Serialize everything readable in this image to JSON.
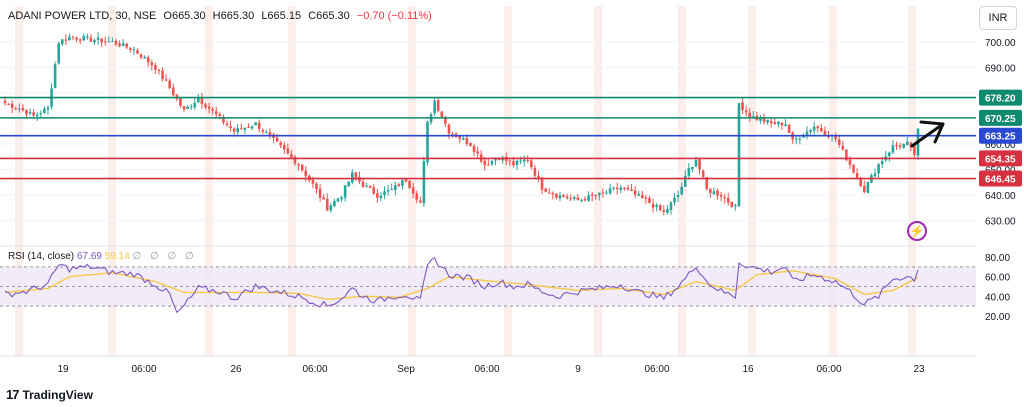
{
  "header": {
    "symbol": "ADANI POWER LTD, 30, NSE",
    "open": "O665.30",
    "high": "H665.30",
    "low": "L665.15",
    "close": "C665.30",
    "change": "−0.70 (−0.11%)"
  },
  "currency_label": "INR",
  "brand": {
    "logo_text": "17",
    "name": "TradingView"
  },
  "colors": {
    "bull": "#26a69a",
    "bear": "#ef5350",
    "green_line": "#0f8a6e",
    "blue_line": "#2848d4",
    "red_line": "#d73041",
    "rsi": "#7e57c2",
    "rsi_ma": "#f7c948",
    "rsi_band": "#ede7f6",
    "vband": "#fbe9e4"
  },
  "chart_data": [
    {
      "type": "candlestick",
      "title": "ADANI POWER LTD, 30, NSE",
      "currency": "INR",
      "ylim": [
        626,
        711
      ],
      "ytick_labels": [
        "700.00",
        "690.00",
        "680.00",
        "670.00",
        "660.00",
        "650.00",
        "640.00",
        "630.00"
      ],
      "yticks": [
        700,
        690,
        680,
        670,
        660,
        650,
        640,
        630
      ],
      "xtick_labels": [
        "19",
        "06:00",
        "26",
        "06:00",
        "Sep",
        "06:00",
        "9",
        "06:00",
        "16",
        "06:00",
        "23"
      ],
      "close_path": [
        [
          0,
          676
        ],
        [
          4,
          674
        ],
        [
          8,
          671
        ],
        [
          12,
          674
        ],
        [
          15,
          700
        ],
        [
          18,
          702
        ],
        [
          24,
          701
        ],
        [
          30,
          700
        ],
        [
          36,
          697
        ],
        [
          42,
          690
        ],
        [
          46,
          682
        ],
        [
          50,
          673
        ],
        [
          54,
          678
        ],
        [
          60,
          670
        ],
        [
          64,
          665
        ],
        [
          70,
          668
        ],
        [
          76,
          660
        ],
        [
          82,
          652
        ],
        [
          86,
          644
        ],
        [
          90,
          635
        ],
        [
          94,
          640
        ],
        [
          97,
          648
        ],
        [
          100,
          644
        ],
        [
          104,
          640
        ],
        [
          108,
          642
        ],
        [
          112,
          646
        ],
        [
          116,
          637
        ],
        [
          118,
          668
        ],
        [
          120,
          677
        ],
        [
          124,
          665
        ],
        [
          130,
          660
        ],
        [
          134,
          652
        ],
        [
          138,
          655
        ],
        [
          142,
          652
        ],
        [
          146,
          654
        ],
        [
          150,
          643
        ],
        [
          154,
          640
        ],
        [
          160,
          638
        ],
        [
          166,
          640
        ],
        [
          172,
          643
        ],
        [
          176,
          640
        ],
        [
          180,
          637
        ],
        [
          184,
          633
        ],
        [
          188,
          640
        ],
        [
          191,
          650
        ],
        [
          193,
          654
        ],
        [
          196,
          642
        ],
        [
          200,
          640
        ],
        [
          204,
          635
        ],
        [
          205,
          676
        ],
        [
          208,
          671
        ],
        [
          214,
          668
        ],
        [
          218,
          668
        ],
        [
          220,
          661
        ],
        [
          226,
          667
        ],
        [
          232,
          662
        ],
        [
          236,
          652
        ],
        [
          240,
          642
        ],
        [
          244,
          652
        ],
        [
          248,
          659
        ],
        [
          252,
          660
        ],
        [
          254,
          656
        ],
        [
          255,
          665
        ]
      ],
      "horizontal_levels": [
        {
          "value": 678.2,
          "label": "678.20",
          "color": "#0f8a6e"
        },
        {
          "value": 670.25,
          "label": "670.25",
          "color": "#0f8a6e"
        },
        {
          "value": 663.25,
          "label": "663.25",
          "color": "#2848d4"
        },
        {
          "value": 654.35,
          "label": "654.35",
          "color": "#d73041"
        },
        {
          "value": 646.45,
          "label": "646.45",
          "color": "#d73041"
        }
      ]
    },
    {
      "type": "line",
      "title": "RSI (14, close)",
      "legend": [
        "67.69",
        "59.14",
        "∅ ∅ ∅ ∅"
      ],
      "ylim": [
        15,
        85
      ],
      "yticks": [
        80,
        60,
        40,
        20
      ],
      "ytick_labels": [
        "80.00",
        "60.00",
        "40.00",
        "20.00"
      ],
      "band": [
        30,
        70
      ],
      "mid_line": 50,
      "series": [
        {
          "role": "rsi",
          "values": [
            [
              0,
              42
            ],
            [
              6,
              45
            ],
            [
              12,
              52
            ],
            [
              15,
              72
            ],
            [
              18,
              68
            ],
            [
              24,
              70
            ],
            [
              30,
              64
            ],
            [
              36,
              63
            ],
            [
              42,
              52
            ],
            [
              46,
              42
            ],
            [
              48,
              22
            ],
            [
              50,
              30
            ],
            [
              54,
              48
            ],
            [
              60,
              45
            ],
            [
              64,
              38
            ],
            [
              70,
              50
            ],
            [
              76,
              45
            ],
            [
              82,
              40
            ],
            [
              86,
              35
            ],
            [
              90,
              30
            ],
            [
              94,
              38
            ],
            [
              97,
              48
            ],
            [
              100,
              40
            ],
            [
              104,
              35
            ],
            [
              108,
              40
            ],
            [
              112,
              42
            ],
            [
              116,
              35
            ],
            [
              118,
              70
            ],
            [
              120,
              78
            ],
            [
              124,
              62
            ],
            [
              130,
              58
            ],
            [
              134,
              50
            ],
            [
              138,
              55
            ],
            [
              142,
              50
            ],
            [
              146,
              52
            ],
            [
              150,
              45
            ],
            [
              154,
              40
            ],
            [
              160,
              45
            ],
            [
              166,
              48
            ],
            [
              172,
              52
            ],
            [
              176,
              45
            ],
            [
              180,
              42
            ],
            [
              184,
              38
            ],
            [
              188,
              50
            ],
            [
              191,
              62
            ],
            [
              193,
              72
            ],
            [
              196,
              55
            ],
            [
              200,
              45
            ],
            [
              204,
              40
            ],
            [
              205,
              75
            ],
            [
              208,
              70
            ],
            [
              214,
              65
            ],
            [
              218,
              70
            ],
            [
              220,
              55
            ],
            [
              226,
              62
            ],
            [
              232,
              55
            ],
            [
              236,
              45
            ],
            [
              240,
              32
            ],
            [
              244,
              40
            ],
            [
              248,
              58
            ],
            [
              252,
              60
            ],
            [
              254,
              58
            ],
            [
              255,
              67.69
            ]
          ]
        },
        {
          "role": "rsi_ma",
          "values": [
            [
              0,
              44
            ],
            [
              12,
              48
            ],
            [
              18,
              60
            ],
            [
              30,
              64
            ],
            [
              42,
              55
            ],
            [
              50,
              44
            ],
            [
              60,
              44
            ],
            [
              70,
              44
            ],
            [
              82,
              43
            ],
            [
              90,
              37
            ],
            [
              100,
              40
            ],
            [
              110,
              39
            ],
            [
              118,
              48
            ],
            [
              124,
              60
            ],
            [
              134,
              56
            ],
            [
              146,
              52
            ],
            [
              160,
              46
            ],
            [
              172,
              48
            ],
            [
              184,
              42
            ],
            [
              193,
              55
            ],
            [
              204,
              46
            ],
            [
              210,
              62
            ],
            [
              220,
              66
            ],
            [
              232,
              58
            ],
            [
              240,
              42
            ],
            [
              248,
              46
            ],
            [
              255,
              59.14
            ]
          ]
        }
      ]
    }
  ]
}
